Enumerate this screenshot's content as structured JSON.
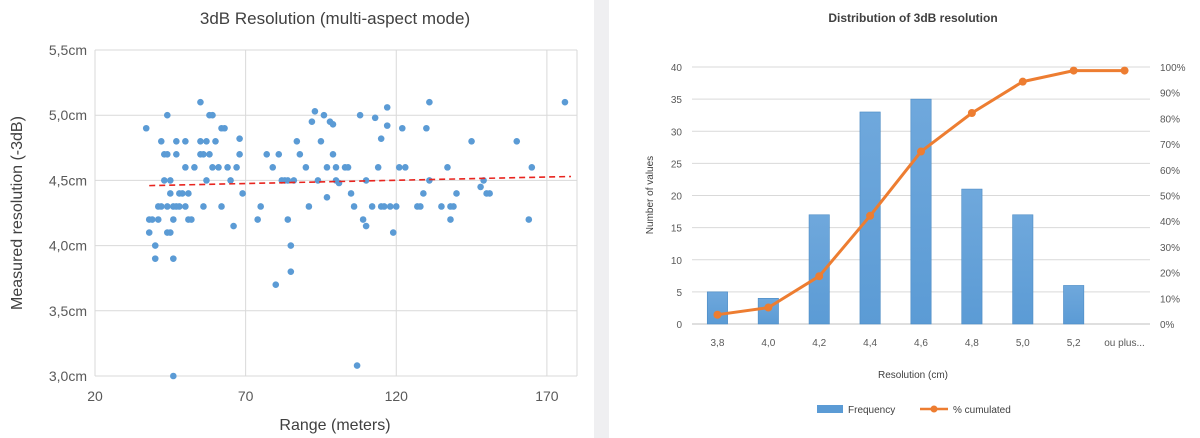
{
  "chart_data": [
    {
      "type": "scatter",
      "title": "3dB Resolution (multi-aspect mode)",
      "xlabel": "Range (meters)",
      "ylabel": "Measured resolution (-3dB)",
      "xlim": [
        20,
        180
      ],
      "ylim": [
        3.0,
        5.5
      ],
      "xticks": [
        "20",
        "70",
        "120",
        "170"
      ],
      "yticks": [
        "3,0cm",
        "3,5cm",
        "4,0cm",
        "4,5cm",
        "5,0cm",
        "5,5cm"
      ],
      "grid": true,
      "point_color": "#5b9bd5",
      "trendline": {
        "color": "#e8251f",
        "style": "dashed",
        "x": [
          38,
          178
        ],
        "y": [
          4.46,
          4.53
        ]
      },
      "points": [
        [
          37,
          4.9
        ],
        [
          38,
          4.1
        ],
        [
          38,
          4.2
        ],
        [
          39,
          4.2
        ],
        [
          40,
          3.9
        ],
        [
          40,
          4.0
        ],
        [
          41,
          4.3
        ],
        [
          41,
          4.2
        ],
        [
          42,
          4.3
        ],
        [
          42,
          4.8
        ],
        [
          43,
          4.5
        ],
        [
          43,
          4.7
        ],
        [
          44,
          5.0
        ],
        [
          44,
          4.7
        ],
        [
          44,
          4.3
        ],
        [
          44,
          4.1
        ],
        [
          45,
          4.1
        ],
        [
          45,
          4.5
        ],
        [
          45,
          4.4
        ],
        [
          46,
          4.3
        ],
        [
          46,
          4.2
        ],
        [
          46,
          3.9
        ],
        [
          46,
          3.0
        ],
        [
          47,
          4.8
        ],
        [
          47,
          4.7
        ],
        [
          47,
          4.3
        ],
        [
          48,
          4.3
        ],
        [
          48,
          4.4
        ],
        [
          49,
          4.4
        ],
        [
          50,
          4.8
        ],
        [
          50,
          4.6
        ],
        [
          50,
          4.3
        ],
        [
          51,
          4.2
        ],
        [
          51,
          4.4
        ],
        [
          52,
          4.2
        ],
        [
          53,
          4.6
        ],
        [
          55,
          5.1
        ],
        [
          55,
          4.8
        ],
        [
          55,
          4.7
        ],
        [
          56,
          4.3
        ],
        [
          56,
          4.7
        ],
        [
          57,
          4.5
        ],
        [
          57,
          4.8
        ],
        [
          58,
          4.7
        ],
        [
          58,
          5.0
        ],
        [
          59,
          5.0
        ],
        [
          59,
          4.6
        ],
        [
          60,
          4.8
        ],
        [
          61,
          4.6
        ],
        [
          62,
          4.9
        ],
        [
          62,
          4.3
        ],
        [
          63,
          4.9
        ],
        [
          64,
          4.6
        ],
        [
          65,
          4.5
        ],
        [
          66,
          4.15
        ],
        [
          67,
          4.6
        ],
        [
          68,
          4.7
        ],
        [
          68,
          4.82
        ],
        [
          69,
          4.4
        ],
        [
          74,
          4.2
        ],
        [
          75,
          4.3
        ],
        [
          77,
          4.7
        ],
        [
          79,
          4.6
        ],
        [
          80,
          3.7
        ],
        [
          81,
          4.7
        ],
        [
          82,
          4.5
        ],
        [
          83,
          4.5
        ],
        [
          84,
          4.2
        ],
        [
          84,
          4.5
        ],
        [
          85,
          4.0
        ],
        [
          85,
          3.8
        ],
        [
          86,
          4.5
        ],
        [
          87,
          4.8
        ],
        [
          88,
          4.7
        ],
        [
          90,
          4.6
        ],
        [
          91,
          4.3
        ],
        [
          92,
          4.95
        ],
        [
          93,
          5.03
        ],
        [
          94,
          4.5
        ],
        [
          95,
          4.8
        ],
        [
          96,
          5.0
        ],
        [
          97,
          4.37
        ],
        [
          97,
          4.6
        ],
        [
          98,
          4.95
        ],
        [
          99,
          4.7
        ],
        [
          99,
          4.93
        ],
        [
          100,
          4.5
        ],
        [
          100,
          4.6
        ],
        [
          101,
          4.48
        ],
        [
          103,
          4.6
        ],
        [
          104,
          4.6
        ],
        [
          105,
          4.4
        ],
        [
          106,
          4.3
        ],
        [
          107,
          3.08
        ],
        [
          108,
          5.0
        ],
        [
          109,
          4.2
        ],
        [
          110,
          4.5
        ],
        [
          110,
          4.15
        ],
        [
          112,
          4.3
        ],
        [
          113,
          4.98
        ],
        [
          114,
          4.6
        ],
        [
          115,
          4.3
        ],
        [
          115,
          4.82
        ],
        [
          116,
          4.3
        ],
        [
          117,
          4.92
        ],
        [
          117,
          5.06
        ],
        [
          118,
          4.3
        ],
        [
          119,
          4.1
        ],
        [
          120,
          4.3
        ],
        [
          121,
          4.6
        ],
        [
          122,
          4.9
        ],
        [
          123,
          4.6
        ],
        [
          127,
          4.3
        ],
        [
          128,
          4.3
        ],
        [
          129,
          4.4
        ],
        [
          130,
          4.9
        ],
        [
          131,
          5.1
        ],
        [
          131,
          4.5
        ],
        [
          135,
          4.3
        ],
        [
          137,
          4.6
        ],
        [
          138,
          4.3
        ],
        [
          138,
          4.2
        ],
        [
          139,
          4.3
        ],
        [
          140,
          4.4
        ],
        [
          145,
          4.8
        ],
        [
          148,
          4.45
        ],
        [
          149,
          4.5
        ],
        [
          150,
          4.4
        ],
        [
          151,
          4.4
        ],
        [
          160,
          4.8
        ],
        [
          164,
          4.2
        ],
        [
          165,
          4.6
        ],
        [
          176,
          5.1
        ]
      ]
    },
    {
      "type": "bar",
      "title": "Distribution  of 3dB resolution",
      "xlabel": "Resolution (cm)",
      "ylabel": "Number of values",
      "categories": [
        "3,8",
        "4,0",
        "4,2",
        "4,4",
        "4,6",
        "4,8",
        "5,0",
        "5,2",
        "ou plus..."
      ],
      "ylim": [
        0,
        40
      ],
      "yticks": [
        "0",
        "5",
        "10",
        "15",
        "20",
        "25",
        "30",
        "35",
        "40"
      ],
      "y2lim": [
        0,
        100
      ],
      "y2ticks": [
        "0%",
        "10%",
        "20%",
        "30%",
        "40%",
        "50%",
        "60%",
        "70%",
        "80%",
        "90%",
        "100%"
      ],
      "grid": true,
      "legend_position": "bottom",
      "series": [
        {
          "name": "Frequency",
          "kind": "bar",
          "axis": "left",
          "color": "#5b9bd5",
          "values": [
            5,
            4,
            17,
            33,
            35,
            21,
            17,
            6,
            0
          ]
        },
        {
          "name": "% cumulated",
          "kind": "line",
          "axis": "right",
          "color": "#ed7d31",
          "values": [
            3.6,
            6.4,
            18.6,
            42.1,
            67.1,
            82.1,
            94.3,
            98.6,
            98.6
          ]
        }
      ]
    }
  ]
}
